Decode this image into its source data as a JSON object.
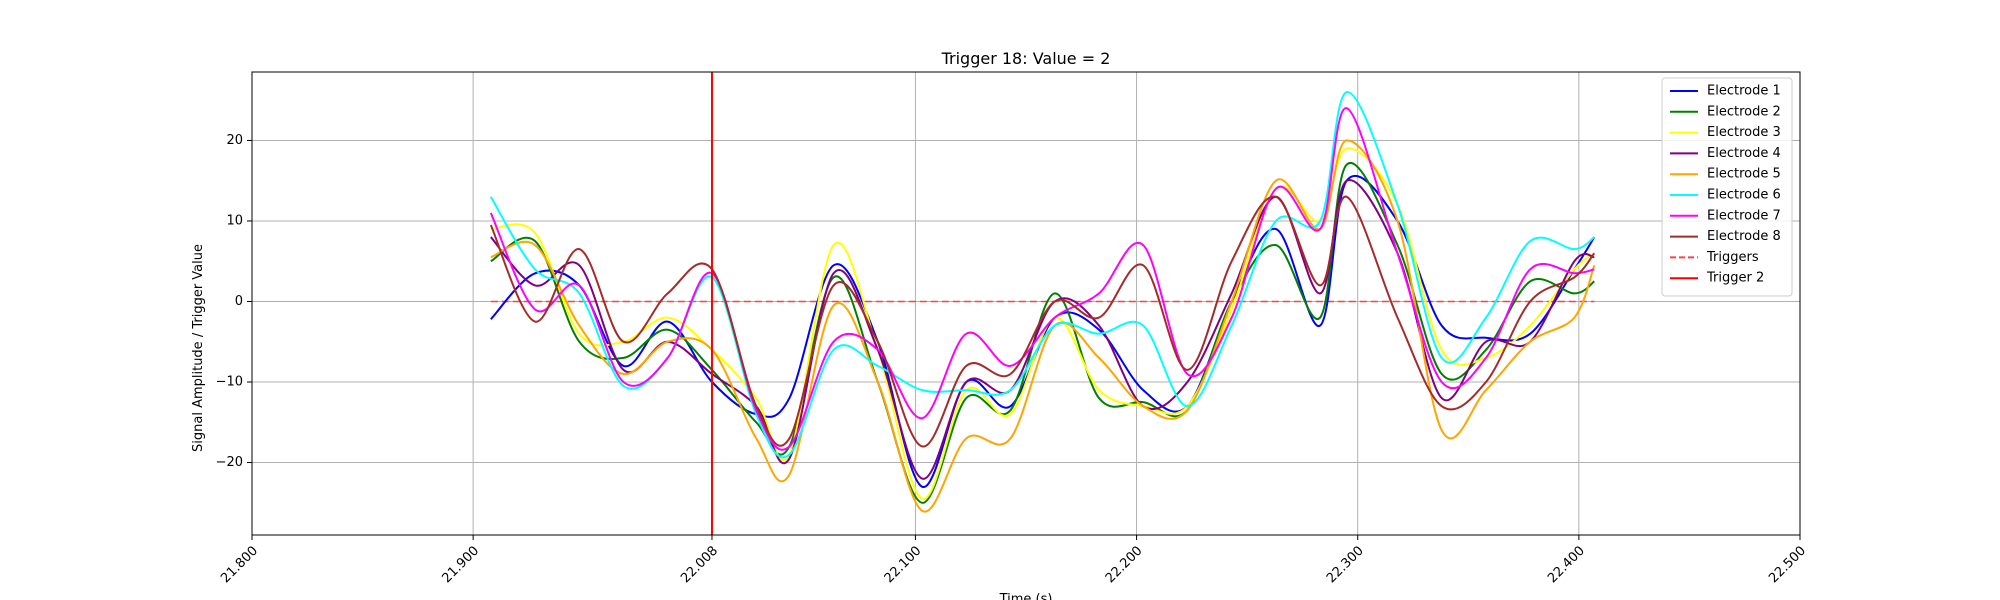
{
  "chart_data": {
    "type": "line",
    "title": "Trigger 18: Value = 2",
    "xlabel": "Time (s)",
    "ylabel": "Signal Amplitude / Trigger Value",
    "xlim": [
      21.8,
      22.5
    ],
    "ylim": [
      -29,
      28.5
    ],
    "x_ticks": [
      21.8,
      21.9,
      22.008,
      22.1,
      22.2,
      22.3,
      22.4,
      22.5
    ],
    "x_tick_labels": [
      "21.800",
      "21.900",
      "22.008",
      "22.100",
      "22.200",
      "22.300",
      "22.400",
      "22.500"
    ],
    "y_ticks": [
      -20,
      -10,
      0,
      10,
      20
    ],
    "y_tick_labels": [
      "−20",
      "−10",
      "0",
      "10",
      "20"
    ],
    "grid": true,
    "legend_position": "top-right",
    "trigger_line": {
      "name": "Trigger 2",
      "x": 22.008,
      "color": "#ff0000"
    },
    "triggers_line": {
      "name": "Triggers",
      "x_range": [
        21.908,
        22.407
      ],
      "y": 0,
      "color": "#ff4040",
      "dashed": true
    },
    "x": [
      21.908,
      21.928,
      21.948,
      21.968,
      21.988,
      22.008,
      22.028,
      22.043,
      22.063,
      22.083,
      22.103,
      22.123,
      22.143,
      22.163,
      22.183,
      22.203,
      22.223,
      22.243,
      22.263,
      22.283,
      22.295,
      22.318,
      22.338,
      22.358,
      22.378,
      22.398,
      22.407
    ],
    "series": [
      {
        "name": "Electrode 1",
        "color": "#0000ff",
        "values": [
          -2.2,
          3.5,
          2.0,
          -8.0,
          -2.5,
          -10.0,
          -14.0,
          -12.0,
          4.5,
          -5.0,
          -23.0,
          -10.0,
          -13.0,
          -2.0,
          -3.5,
          -11.0,
          -13.0,
          0.0,
          9.0,
          -3.0,
          15.0,
          10.0,
          -3.0,
          -4.5,
          -4.0,
          4.0,
          8.0
        ]
      },
      {
        "name": "Electrode 2",
        "color": "#008000",
        "values": [
          5.0,
          7.5,
          -5.0,
          -7.0,
          -3.5,
          -8.5,
          -15.0,
          -18.0,
          3.0,
          -10.0,
          -25.0,
          -12.0,
          -13.5,
          1.0,
          -12.0,
          -12.5,
          -13.5,
          0.0,
          7.0,
          -2.0,
          17.0,
          7.0,
          -9.0,
          -6.0,
          2.5,
          1.0,
          2.5
        ]
      },
      {
        "name": "Electrode 3",
        "color": "#ffff00",
        "values": [
          9.0,
          8.5,
          -4.0,
          -5.0,
          -2.0,
          -6.0,
          -12.0,
          -19.0,
          7.0,
          -6.0,
          -24.5,
          -11.0,
          -14.0,
          -2.0,
          -11.0,
          -13.0,
          -13.0,
          -1.0,
          14.0,
          10.0,
          19.0,
          12.0,
          -6.0,
          -7.0,
          -3.0,
          4.0,
          6.0
        ]
      },
      {
        "name": "Electrode 4",
        "color": "#800080",
        "values": [
          8.0,
          2.0,
          4.5,
          -8.5,
          -5.0,
          -9.0,
          -13.0,
          -19.5,
          3.5,
          -6.0,
          -22.0,
          -10.0,
          -11.0,
          0.0,
          -3.0,
          -13.0,
          -10.0,
          1.0,
          13.0,
          1.0,
          15.0,
          6.0,
          -12.0,
          -5.0,
          -5.0,
          5.0,
          5.5
        ]
      },
      {
        "name": "Electrode 5",
        "color": "#ffa500",
        "values": [
          5.5,
          7.0,
          -3.0,
          -9.0,
          -5.0,
          -6.0,
          -17.0,
          -21.5,
          -0.5,
          -10.0,
          -26.0,
          -17.0,
          -17.0,
          -3.0,
          -7.0,
          -13.0,
          -13.5,
          0.0,
          15.0,
          9.0,
          20.0,
          10.0,
          -16.0,
          -11.0,
          -5.0,
          -2.0,
          4.5
        ]
      },
      {
        "name": "Electrode 6",
        "color": "#00ffff",
        "values": [
          13.0,
          4.0,
          1.0,
          -10.5,
          -7.0,
          3.0,
          -14.0,
          -19.0,
          -6.0,
          -8.0,
          -11.0,
          -11.0,
          -11.0,
          -3.0,
          -4.0,
          -3.0,
          -13.0,
          -3.0,
          10.0,
          10.0,
          26.0,
          12.0,
          -7.0,
          -2.0,
          7.5,
          6.5,
          8.0
        ]
      },
      {
        "name": "Electrode 7",
        "color": "#ff00ff",
        "values": [
          11.0,
          -1.0,
          2.0,
          -10.0,
          -7.0,
          3.5,
          -13.5,
          -18.0,
          -5.0,
          -6.0,
          -14.5,
          -4.0,
          -8.0,
          -2.0,
          1.0,
          7.0,
          -9.0,
          -2.0,
          14.0,
          9.0,
          24.0,
          6.0,
          -10.0,
          -7.0,
          4.0,
          3.5,
          4.0
        ]
      },
      {
        "name": "Electrode 8",
        "color": "#a52a2a",
        "values": [
          9.5,
          -2.5,
          6.5,
          -5.0,
          1.0,
          4.0,
          -13.0,
          -17.0,
          2.0,
          -5.0,
          -18.0,
          -8.0,
          -9.0,
          0.0,
          -2.0,
          4.5,
          -8.5,
          5.0,
          13.0,
          2.0,
          13.0,
          -2.0,
          -13.0,
          -10.0,
          0.0,
          3.0,
          6.0
        ]
      }
    ],
    "legend": [
      {
        "label": "Electrode 1",
        "color": "#0000ff",
        "style": "solid"
      },
      {
        "label": "Electrode 2",
        "color": "#008000",
        "style": "solid"
      },
      {
        "label": "Electrode 3",
        "color": "#ffff00",
        "style": "solid"
      },
      {
        "label": "Electrode 4",
        "color": "#800080",
        "style": "solid"
      },
      {
        "label": "Electrode 5",
        "color": "#ffa500",
        "style": "solid"
      },
      {
        "label": "Electrode 6",
        "color": "#00ffff",
        "style": "solid"
      },
      {
        "label": "Electrode 7",
        "color": "#ff00ff",
        "style": "solid"
      },
      {
        "label": "Electrode 8",
        "color": "#a52a2a",
        "style": "solid"
      },
      {
        "label": "Triggers",
        "color": "#ff4040",
        "style": "dashed"
      },
      {
        "label": "Trigger 2",
        "color": "#ff0000",
        "style": "solid"
      }
    ]
  }
}
